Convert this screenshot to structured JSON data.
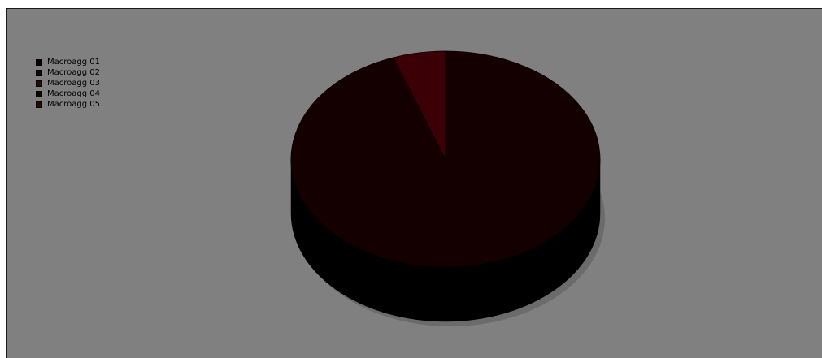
{
  "chart_data": {
    "type": "pie",
    "title": "",
    "style": "3d",
    "categories": [
      "Macroagg 01",
      "Macroagg 02",
      "Macroagg 03",
      "Macroagg 04",
      "Macroagg 05"
    ],
    "values": [
      0,
      0,
      0,
      94.5,
      5.5
    ],
    "colors": [
      "#0a0000",
      "#1a0505",
      "#2a0808",
      "#150000",
      "#3a0005"
    ],
    "legend_position": "top-left",
    "background": "#808080"
  }
}
